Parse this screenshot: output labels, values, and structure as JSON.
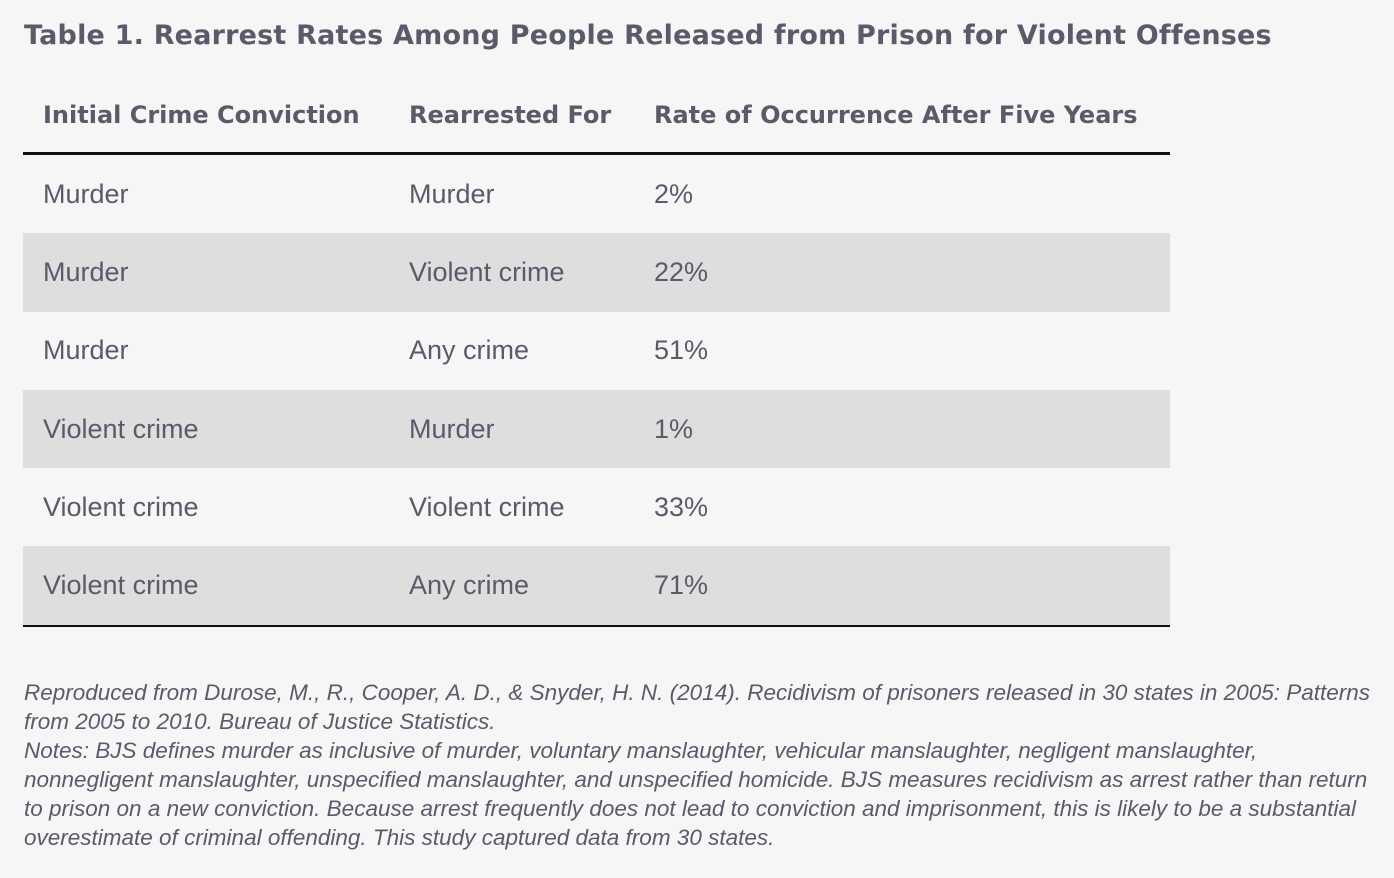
{
  "title": "Table 1. Rearrest Rates Among People Released from Prison for Violent Offenses",
  "table": {
    "headers": [
      "Initial Crime Conviction",
      "Rearrested For",
      "Rate of Occurrence After Five Years"
    ],
    "rows": [
      [
        "Murder",
        "Murder",
        "2%"
      ],
      [
        "Murder",
        "Violent crime",
        "22%"
      ],
      [
        "Murder",
        "Any crime",
        "51%"
      ],
      [
        "Violent crime",
        "Murder",
        "1%"
      ],
      [
        "Violent crime",
        "Violent crime",
        "33%"
      ],
      [
        "Violent crime",
        "Any crime",
        "71%"
      ]
    ]
  },
  "source": "Reproduced from Durose, M., R., Cooper, A. D., & Snyder, H. N. (2014). Recidivism of prisoners released in 30 states in 2005: Patterns from 2005 to 2010. Bureau of Justice Statistics.",
  "notes": "Notes: BJS defines murder as inclusive of murder, voluntary manslaughter, vehicular manslaughter, negligent manslaughter, nonnegligent manslaughter, unspecified manslaughter, and unspecified homicide. BJS measures recidivism as arrest rather than return to prison on a new conviction. Because arrest frequently does not lead to conviction and imprisonment, this is likely to be a substantial overestimate of criminal offending. This study captured data from 30 states.",
  "colors": {
    "text": "#5a5b6a",
    "background": "#f6f6f6",
    "row_shade": "#dedede",
    "rule": "#111111"
  }
}
